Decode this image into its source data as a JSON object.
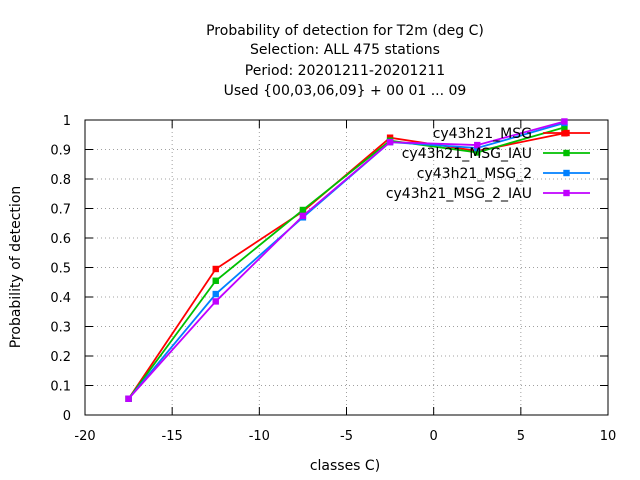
{
  "chart_data": {
    "type": "line",
    "title": [
      "Probability of detection  for T2m (deg C)",
      "Selection: ALL    475 stations",
      "Period: 20201211-20201211",
      "Used {00,03,06,09} + 00 01 ... 09"
    ],
    "xlabel": "classes C)",
    "ylabel": "Probability of detection",
    "xlim": [
      -20,
      10
    ],
    "ylim": [
      0,
      1
    ],
    "x_ticks": [
      -20,
      -15,
      -10,
      -5,
      0,
      5,
      10
    ],
    "x_tick_labels": [
      "-20",
      "-15",
      "-10",
      "-5",
      "0",
      "5",
      "10"
    ],
    "y_ticks": [
      0,
      0.1,
      0.2,
      0.3,
      0.4,
      0.5,
      0.6,
      0.7,
      0.8,
      0.9,
      1
    ],
    "y_tick_labels": [
      "0",
      "0.1",
      "0.2",
      "0.3",
      "0.4",
      "0.5",
      "0.6",
      "0.7",
      "0.8",
      "0.9",
      "1"
    ],
    "grid": true,
    "legend_position": "top-right",
    "series": [
      {
        "name": "cy43h21_MSG",
        "color": "#ff0000",
        "x": [
          -17.5,
          -12.5,
          -7.5,
          -2.5,
          2.5,
          7.5
        ],
        "y": [
          0.055,
          0.495,
          0.69,
          0.94,
          0.895,
          0.955
        ]
      },
      {
        "name": "cy43h21_MSG_IAU",
        "color": "#00c000",
        "x": [
          -17.5,
          -12.5,
          -7.5,
          -2.5,
          2.5,
          7.5
        ],
        "y": [
          0.055,
          0.455,
          0.695,
          0.93,
          0.89,
          0.975
        ]
      },
      {
        "name": "cy43h21_MSG_2",
        "color": "#0080ff",
        "x": [
          -17.5,
          -12.5,
          -7.5,
          -2.5,
          2.5,
          7.5
        ],
        "y": [
          0.055,
          0.41,
          0.67,
          0.925,
          0.905,
          0.99
        ]
      },
      {
        "name": "cy43h21_MSG_2_IAU",
        "color": "#c000ff",
        "x": [
          -17.5,
          -12.5,
          -7.5,
          -2.5,
          2.5,
          7.5
        ],
        "y": [
          0.055,
          0.385,
          0.675,
          0.925,
          0.915,
          0.995
        ]
      }
    ]
  }
}
